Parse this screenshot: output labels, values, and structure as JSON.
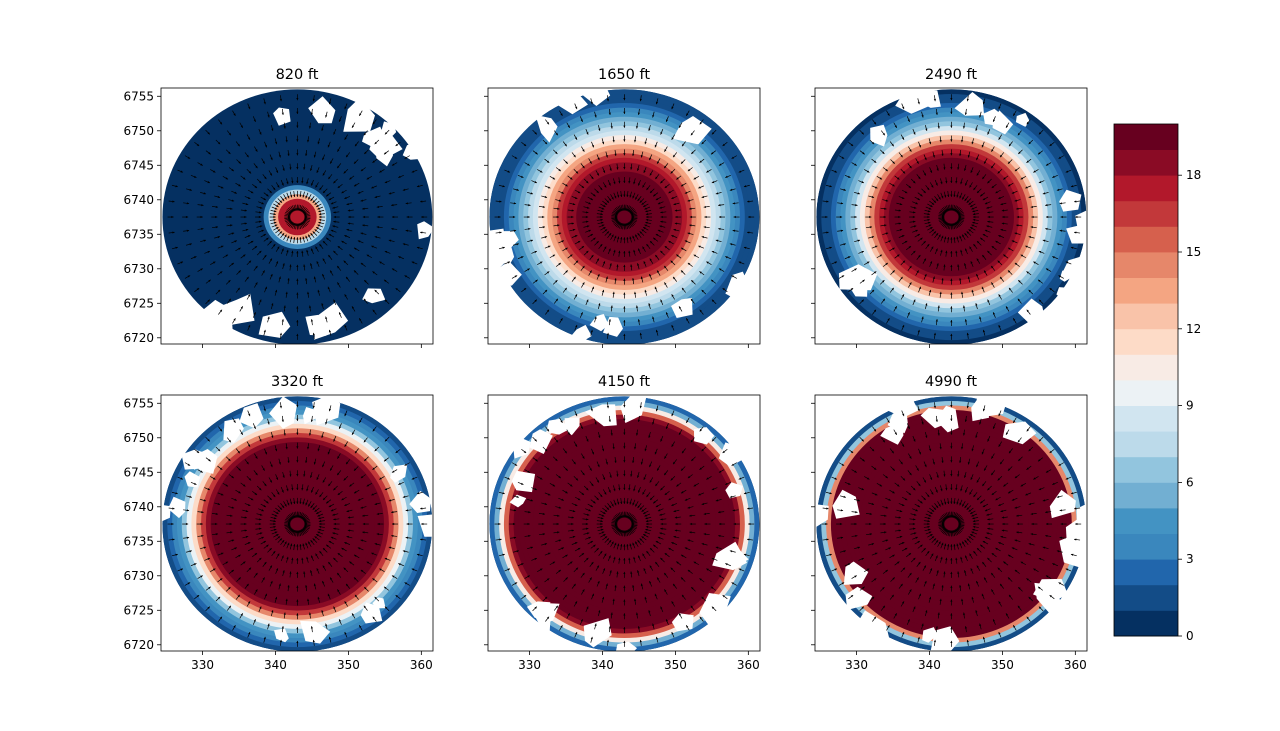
{
  "chart_data": {
    "type": "heatmap",
    "x_ticks": [
      330,
      340,
      350,
      360
    ],
    "y_ticks": [
      6720,
      6725,
      6730,
      6735,
      6740,
      6745,
      6750,
      6755
    ],
    "xlim": [
      324.3,
      361.6
    ],
    "ylim": [
      6719.1,
      6756.2
    ],
    "domain": {
      "center": [
        343,
        6737.5
      ],
      "radius": 18.5
    },
    "panels": [
      {
        "title": "820 ft",
        "core_radius": 2.4,
        "core_peak": 17.5,
        "decay": 1.6,
        "gap_count": 16
      },
      {
        "title": "1650 ft",
        "core_radius": 6.0,
        "core_peak": 19.5,
        "decay": 7.0,
        "gap_count": 14
      },
      {
        "title": "2490 ft",
        "core_radius": 8.0,
        "core_peak": 19.5,
        "decay": 5.5,
        "gap_count": 16
      },
      {
        "title": "3320 ft",
        "core_radius": 11.5,
        "core_peak": 19.5,
        "decay": 4.0,
        "gap_count": 18
      },
      {
        "title": "4150 ft",
        "core_radius": 15.5,
        "core_peak": 19.5,
        "decay": 2.0,
        "gap_count": 20
      },
      {
        "title": "4990 ft",
        "core_radius": 16.5,
        "core_peak": 19.5,
        "decay": 1.2,
        "gap_count": 22
      }
    ],
    "colorbar": {
      "min": 0,
      "max": 20,
      "ticks": [
        0,
        3,
        6,
        9,
        12,
        15,
        18
      ],
      "levels": 20,
      "colors": [
        "#053061",
        "#134c87",
        "#2166ac",
        "#3a87bd",
        "#4393c3",
        "#72afd2",
        "#92c5de",
        "#bcdaea",
        "#d1e5f0",
        "#ecf2f5",
        "#f8ebe5",
        "#fddbc7",
        "#f9c3a9",
        "#f4a582",
        "#e6876a",
        "#d6604d",
        "#c2383a",
        "#b2182b",
        "#8a0b25",
        "#67001f"
      ]
    },
    "grid": false,
    "legend": "colorbar-right"
  }
}
